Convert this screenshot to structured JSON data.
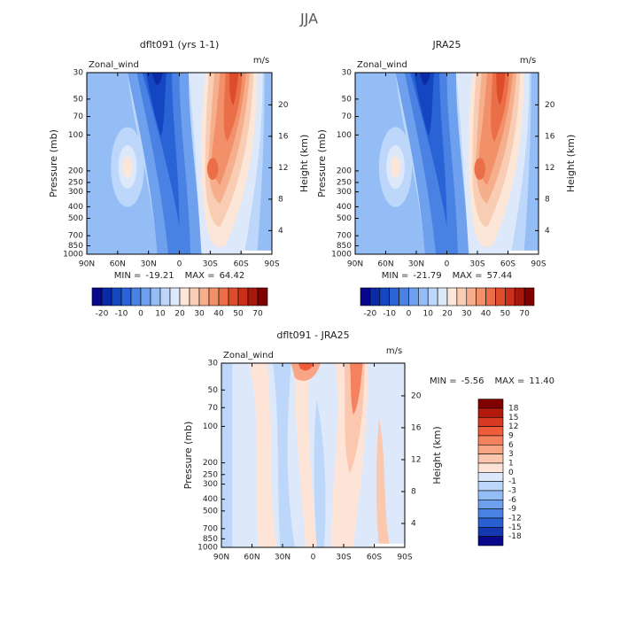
{
  "title": "JJA",
  "x_axis": {
    "xlim": [
      90,
      -90
    ],
    "xticks": [
      {
        "value": 90,
        "label": "90N"
      },
      {
        "value": 60,
        "label": "60N"
      },
      {
        "value": 30,
        "label": "30N"
      },
      0,
      {
        "value": -30,
        "label": "30S"
      },
      {
        "value": -60,
        "label": "60S"
      },
      {
        "value": -90,
        "label": "90S"
      }
    ]
  },
  "pressure_axis": {
    "label": "Pressure (mb)",
    "log_scale": true,
    "ylim": [
      1000,
      30
    ],
    "yticks": [
      30,
      50,
      70,
      100,
      200,
      250,
      300,
      400,
      500,
      700,
      850,
      1000
    ]
  },
  "height_axis": {
    "label": "Height (km)",
    "y2lim": [
      1,
      24.1
    ],
    "y2ticks": [
      4,
      8,
      12,
      16,
      20
    ]
  },
  "panels": [
    {
      "title": "dflt091 (yrs 1-1)",
      "variable": "Zonal_wind",
      "units": "m/s",
      "stats": {
        "min_label": "MIN =",
        "min": -19.21,
        "max_label": "MAX =",
        "max": 64.42
      },
      "colorbar": {
        "orientation": "horizontal",
        "labels": [
          -20,
          -10,
          0,
          10,
          20,
          30,
          40,
          50,
          70
        ],
        "colors": [
          "#08088c",
          "#0d2aa6",
          "#1446c2",
          "#2a63d6",
          "#4a82e4",
          "#6fa0ee",
          "#95bdf5",
          "#bcd7fa",
          "#dde9fb",
          "#fbe6d8",
          "#f9cdb3",
          "#f6af8d",
          "#f2906a",
          "#ea6e48",
          "#dd4c2b",
          "#c9301a",
          "#a8180d",
          "#800000"
        ]
      }
    },
    {
      "title": "JRA25",
      "variable": "Zonal_wind",
      "units": "m/s",
      "stats": {
        "min_label": "MIN =",
        "min": -21.79,
        "max_label": "MAX =",
        "max": 57.44
      },
      "colorbar": {
        "orientation": "horizontal",
        "labels": [
          -20,
          -10,
          0,
          10,
          20,
          30,
          40,
          50,
          70
        ],
        "colors": [
          "#08088c",
          "#0d2aa6",
          "#1446c2",
          "#2a63d6",
          "#4a82e4",
          "#6fa0ee",
          "#95bdf5",
          "#bcd7fa",
          "#dde9fb",
          "#fbe6d8",
          "#f9cdb3",
          "#f6af8d",
          "#f2906a",
          "#ea6e48",
          "#dd4c2b",
          "#c9301a",
          "#a8180d",
          "#800000"
        ]
      }
    },
    {
      "title": "dflt091 - JRA25",
      "variable": "Zonal_wind",
      "units": "m/s",
      "stats": {
        "min_label": "MIN =",
        "min": -5.56,
        "max_label": "MAX =",
        "max": {
          "value": 11.4,
          "label": "11.40"
        }
      },
      "colorbar": {
        "orientation": "vertical",
        "labels": [
          18,
          15,
          12,
          9,
          6,
          3,
          1,
          0,
          -1,
          -3,
          -6,
          -9,
          -12,
          -15,
          -18
        ],
        "colors": [
          "#800000",
          "#b31a0f",
          "#d63a22",
          "#ee5c3a",
          "#f5825e",
          "#f8a585",
          "#fbc7ae",
          "#fde4d6",
          "#dde9fb",
          "#bcd7fa",
          "#95bdf5",
          "#6fa0ee",
          "#4a82e4",
          "#2a5fd0",
          "#1438b0",
          "#08088c"
        ]
      }
    }
  ]
}
